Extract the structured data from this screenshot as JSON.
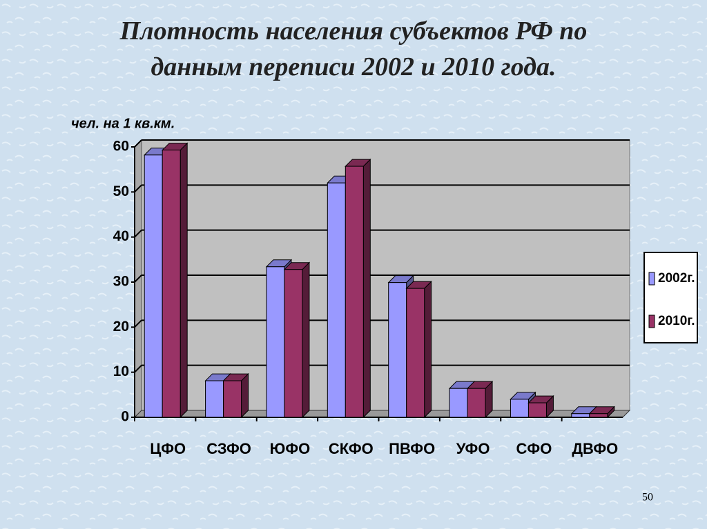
{
  "chart_data": {
    "type": "bar3d",
    "title": "Плотность населения субъектов РФ по данным переписи 2002 и 2010 года.",
    "y_label": "чел. на 1 кв.км.",
    "categories": [
      "ЦФО",
      "СЗФО",
      "ЮФО",
      "СКФО",
      "ПВФО",
      "УФО",
      "СФО",
      "ДВФО"
    ],
    "series": [
      {
        "name": "2002г.",
        "color": "#9999ff",
        "values": [
          58.2,
          8.1,
          33.4,
          52,
          29.9,
          6.4,
          4,
          0.8
        ]
      },
      {
        "name": "2010г.",
        "color": "#993366",
        "values": [
          59.3,
          8.1,
          32.8,
          55.7,
          28.6,
          6.4,
          3.2,
          0.8
        ]
      }
    ],
    "ylim": [
      0,
      60
    ],
    "yticks": [
      0,
      10,
      20,
      30,
      40,
      50,
      60
    ],
    "grid": true,
    "legend": "right",
    "page_number": "50"
  }
}
